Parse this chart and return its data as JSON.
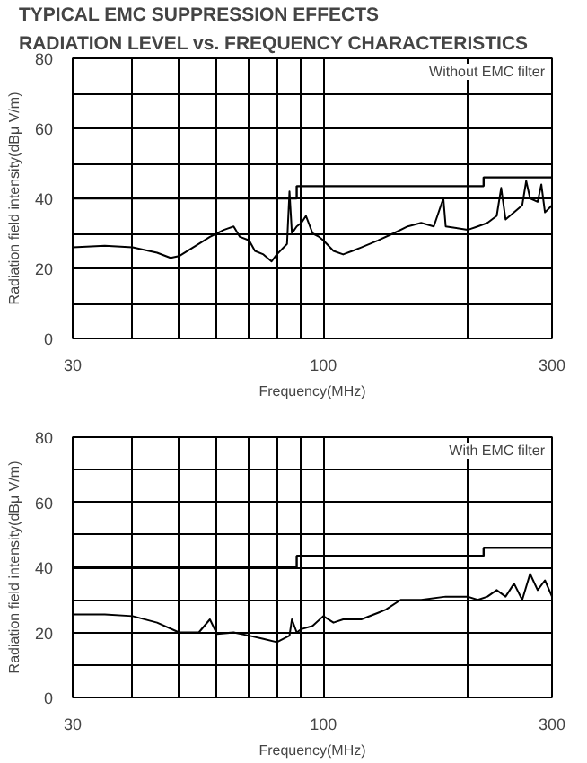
{
  "chart_data": [
    {
      "type": "line",
      "title": "TYPICAL EMC SUPPRESSION EFFECTS",
      "subtitle": "RADIATION LEVEL vs. FREQUENCY CHARACTERISTICS",
      "xlabel": "Frequency(MHz)",
      "ylabel": "Radiation field intensity(dBμ V/m)",
      "annotations": [
        "Without EMC filter"
      ],
      "log": "x",
      "grid": true,
      "xlim": [
        30,
        300
      ],
      "ylim": [
        0,
        80
      ],
      "xticks": [
        30,
        {
          "value": 40,
          "label": null
        },
        {
          "value": 50,
          "label": null
        },
        {
          "value": 60,
          "label": null
        },
        {
          "value": 70,
          "label": null
        },
        {
          "value": 80,
          "label": null
        },
        {
          "value": 90,
          "label": null
        },
        100,
        {
          "value": 200,
          "label": null
        },
        300
      ],
      "yticks": [
        0,
        {
          "value": 10,
          "label": null
        },
        20,
        {
          "value": 30,
          "label": null
        },
        40,
        {
          "value": 50,
          "label": null
        },
        60,
        {
          "value": 70,
          "label": null
        },
        80
      ],
      "series": [
        {
          "color": "#000000",
          "x": [
            30,
            35,
            40,
            45,
            48,
            50,
            55,
            58,
            60,
            62,
            65,
            67,
            70,
            72,
            75,
            78,
            80,
            84,
            85,
            86,
            88,
            90,
            92,
            95,
            98,
            100,
            105,
            110,
            115,
            120,
            130,
            140,
            150,
            160,
            170,
            178,
            180,
            200,
            210,
            220,
            230,
            235,
            240,
            250,
            260,
            265,
            270,
            280,
            285,
            290,
            300
          ],
          "values": [
            26,
            26.5,
            26,
            24.5,
            23,
            23.5,
            27,
            29,
            30,
            31,
            32,
            29,
            28,
            25,
            24,
            22,
            24,
            27,
            42,
            30,
            32,
            33,
            35,
            30,
            29,
            28,
            25,
            24,
            25,
            26,
            28,
            30,
            32,
            33,
            32,
            40,
            32,
            31,
            32,
            33,
            35,
            43,
            34,
            36,
            38,
            45,
            40,
            39,
            44,
            36,
            38
          ]
        },
        {
          "type": "step",
          "color": "#000000",
          "x": [
            30,
            88,
            216,
            300
          ],
          "values": [
            40,
            43.5,
            46,
            46
          ]
        }
      ]
    },
    {
      "type": "line",
      "xlabel": "Frequency(MHz)",
      "ylabel": "Radiation field intensity(dBμ V/m)",
      "annotations": [
        "With EMC filter"
      ],
      "log": "x",
      "grid": true,
      "xlim": [
        30,
        300
      ],
      "ylim": [
        0,
        80
      ],
      "xticks": [
        30,
        {
          "value": 40,
          "label": null
        },
        {
          "value": 50,
          "label": null
        },
        {
          "value": 60,
          "label": null
        },
        {
          "value": 70,
          "label": null
        },
        {
          "value": 80,
          "label": null
        },
        {
          "value": 90,
          "label": null
        },
        100,
        {
          "value": 200,
          "label": null
        },
        300
      ],
      "yticks": [
        0,
        {
          "value": 10,
          "label": null
        },
        20,
        {
          "value": 30,
          "label": null
        },
        40,
        {
          "value": 50,
          "label": null
        },
        60,
        {
          "value": 70,
          "label": null
        },
        80
      ],
      "series": [
        {
          "color": "#000000",
          "x": [
            30,
            35,
            40,
            45,
            50,
            55,
            58,
            60,
            65,
            70,
            75,
            80,
            85,
            86,
            88,
            90,
            95,
            100,
            105,
            110,
            120,
            130,
            135,
            145,
            160,
            180,
            200,
            210,
            220,
            230,
            240,
            250,
            260,
            270,
            280,
            290,
            300
          ],
          "values": [
            25.5,
            25.5,
            25,
            23,
            20,
            20,
            24,
            19.5,
            20,
            19,
            18,
            17,
            19,
            24,
            20,
            21,
            22,
            25,
            23,
            24,
            24,
            26,
            27,
            30,
            30,
            31,
            31,
            30,
            31,
            33,
            31,
            35,
            30,
            38,
            33,
            36,
            31
          ]
        },
        {
          "type": "step",
          "color": "#000000",
          "x": [
            30,
            88,
            216,
            300
          ],
          "values": [
            40,
            43.5,
            46,
            46
          ]
        }
      ]
    }
  ]
}
